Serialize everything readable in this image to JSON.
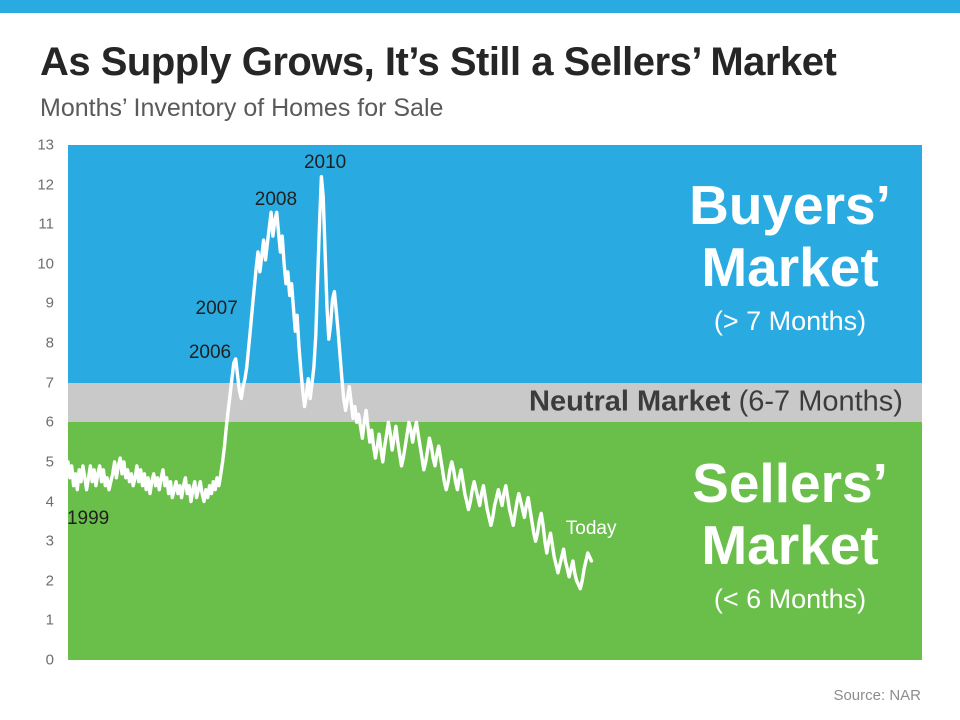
{
  "page": {
    "title": "As Supply Grows, It’s Still a Sellers’ Market",
    "subtitle": "Months’ Inventory of Homes for Sale",
    "source": "Source: NAR"
  },
  "colors": {
    "accent": "#29abe2",
    "buyers_zone": "#29abe2",
    "neutral_zone": "#c9c9c9",
    "sellers_zone": "#6abf4a",
    "line": "#ffffff",
    "annotation_dark": "#1f1f1f",
    "annotation_light": "#ffffff"
  },
  "zones": {
    "buyers": {
      "line1": "Buyers’",
      "line2": "Market",
      "sub": "(> 7 Months)",
      "range": [
        7,
        13
      ]
    },
    "neutral": {
      "label": "Neutral Market",
      "sub": "(6-7 Months)",
      "range": [
        6,
        7
      ]
    },
    "sellers": {
      "line1": "Sellers’",
      "line2": "Market",
      "sub": "(< 6 Months)",
      "range": [
        0,
        6
      ]
    }
  },
  "chart_data": {
    "type": "line",
    "title": "As Supply Grows, It’s Still a Sellers’ Market",
    "subtitle": "Months’ Inventory of Homes for Sale",
    "xlabel": "",
    "ylabel": "Months’ Inventory of Homes for Sale",
    "ylim": [
      0,
      13
    ],
    "y_ticks": [
      0,
      1,
      2,
      3,
      4,
      5,
      6,
      7,
      8,
      9,
      10,
      11,
      12,
      13
    ],
    "grid": false,
    "legend": "none",
    "x_start_year": 1999,
    "points_per_year": 12,
    "x_display_max": 2037.2,
    "bands": [
      {
        "label": "Buyers’ Market (> 7 Months)",
        "range": [
          7,
          13
        ],
        "color": "#29abe2"
      },
      {
        "label": "Neutral Market (6-7 Months)",
        "range": [
          6,
          7
        ],
        "color": "#c9c9c9"
      },
      {
        "label": "Sellers’ Market (< 6 Months)",
        "range": [
          0,
          6
        ],
        "color": "#6abf4a"
      }
    ],
    "series": [
      {
        "name": "Months’ Inventory of Homes for Sale",
        "color": "#ffffff",
        "values": [
          5.0,
          4.6,
          4.9,
          4.4,
          4.7,
          4.3,
          4.8,
          4.5,
          4.9,
          4.6,
          4.3,
          4.6,
          4.9,
          4.5,
          4.8,
          4.4,
          4.7,
          4.9,
          4.5,
          4.8,
          4.4,
          4.6,
          4.3,
          4.5,
          4.7,
          5.0,
          4.6,
          4.9,
          5.1,
          4.7,
          5.0,
          4.6,
          4.8,
          4.5,
          4.7,
          4.4,
          4.6,
          4.9,
          4.5,
          4.8,
          4.4,
          4.7,
          4.3,
          4.6,
          4.2,
          4.5,
          4.7,
          4.4,
          4.6,
          4.3,
          4.6,
          4.8,
          4.4,
          4.6,
          4.2,
          4.5,
          4.1,
          4.3,
          4.5,
          4.2,
          4.4,
          4.1,
          4.4,
          4.6,
          4.2,
          4.4,
          4.0,
          4.3,
          4.5,
          4.1,
          4.3,
          4.5,
          4.2,
          4.0,
          4.3,
          4.1,
          4.4,
          4.2,
          4.5,
          4.3,
          4.6,
          4.4,
          4.7,
          5.0,
          5.4,
          5.9,
          6.3,
          6.7,
          7.1,
          7.5,
          7.6,
          7.2,
          6.8,
          6.6,
          6.9,
          7.1,
          7.4,
          7.9,
          8.4,
          8.9,
          9.4,
          9.9,
          10.3,
          9.8,
          10.2,
          10.6,
          10.1,
          10.5,
          10.9,
          11.3,
          10.7,
          11.1,
          11.3,
          10.8,
          10.3,
          10.7,
          10.0,
          9.5,
          9.8,
          9.2,
          9.5,
          8.9,
          8.3,
          8.7,
          7.9,
          7.3,
          6.8,
          6.4,
          6.7,
          7.1,
          6.6,
          7.0,
          7.4,
          8.2,
          9.6,
          11.0,
          12.2,
          11.7,
          10.3,
          8.9,
          8.1,
          8.5,
          9.1,
          9.3,
          8.8,
          8.3,
          7.7,
          7.1,
          6.6,
          6.3,
          6.6,
          6.9,
          6.5,
          6.1,
          6.4,
          6.0,
          6.2,
          5.9,
          5.6,
          6.0,
          6.3,
          5.9,
          5.5,
          5.8,
          5.4,
          5.1,
          5.4,
          5.7,
          5.3,
          5.0,
          5.4,
          5.7,
          6.0,
          5.7,
          5.3,
          5.6,
          5.9,
          5.5,
          5.2,
          4.9,
          5.1,
          5.4,
          5.7,
          6.0,
          5.8,
          5.5,
          5.8,
          6.0,
          5.7,
          5.4,
          5.1,
          4.8,
          5.0,
          5.3,
          5.6,
          5.4,
          5.1,
          4.9,
          5.2,
          5.4,
          5.1,
          4.8,
          4.5,
          4.3,
          4.5,
          4.8,
          5.0,
          4.8,
          4.5,
          4.3,
          4.6,
          4.8,
          4.5,
          4.2,
          4.0,
          3.8,
          4.0,
          4.3,
          4.5,
          4.3,
          4.1,
          3.9,
          4.2,
          4.4,
          4.1,
          3.8,
          3.6,
          3.4,
          3.6,
          3.9,
          4.1,
          4.3,
          4.1,
          3.9,
          4.2,
          4.4,
          4.1,
          3.8,
          3.6,
          3.4,
          3.7,
          4.0,
          4.2,
          4.0,
          3.8,
          3.6,
          3.9,
          4.1,
          3.8,
          3.5,
          3.2,
          3.0,
          3.2,
          3.5,
          3.7,
          3.4,
          3.0,
          2.7,
          3.0,
          3.2,
          2.9,
          2.6,
          2.4,
          2.2,
          2.4,
          2.6,
          2.8,
          2.5,
          2.3,
          2.1,
          2.3,
          2.5,
          2.2,
          2.0,
          1.9,
          1.8,
          2.0,
          2.3,
          2.5,
          2.7,
          2.6,
          2.5
        ]
      }
    ],
    "annotations": [
      {
        "text": "1999",
        "x": 1999.9,
        "y": 3.55,
        "color": "dark"
      },
      {
        "text": "2006",
        "x": 2005.35,
        "y": 7.75,
        "color": "dark"
      },
      {
        "text": "2007",
        "x": 2005.65,
        "y": 8.85,
        "color": "dark"
      },
      {
        "text": "2008",
        "x": 2008.3,
        "y": 11.6,
        "color": "dark"
      },
      {
        "text": "2010",
        "x": 2010.5,
        "y": 12.55,
        "color": "dark"
      },
      {
        "text": "Today",
        "x": 2022.4,
        "y": 3.3,
        "color": "white"
      }
    ]
  }
}
